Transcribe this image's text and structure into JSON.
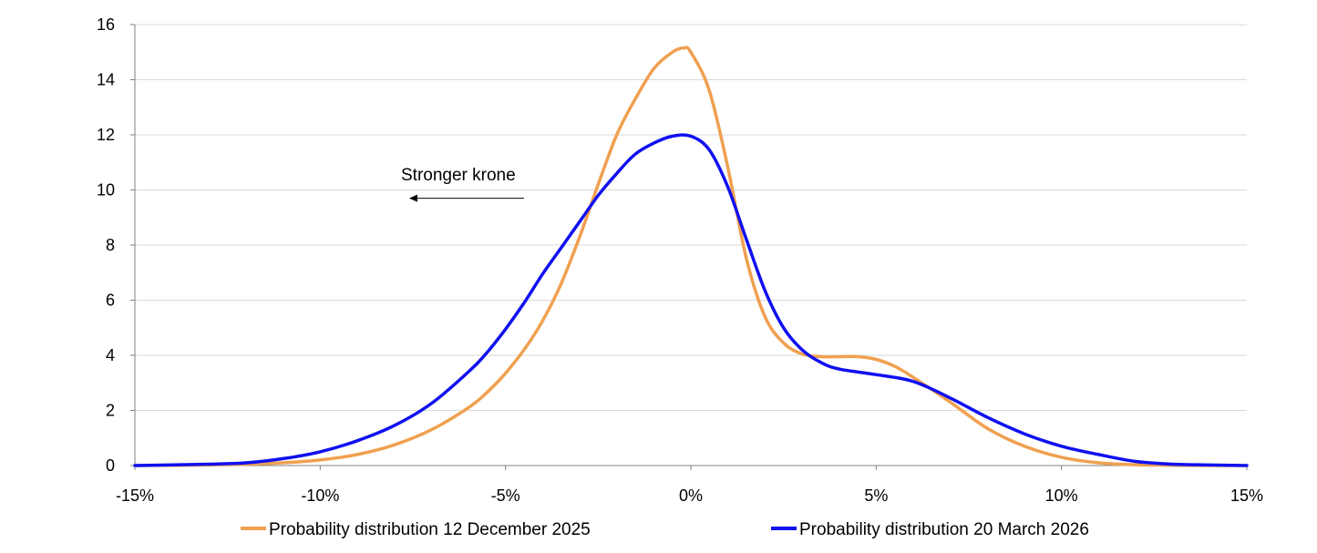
{
  "colors": {
    "series_1": "#F0A050",
    "series_2": "#1010F0",
    "grid": "#D9D9D9",
    "axis": "#808080",
    "text": "#000000"
  },
  "chart_data": {
    "type": "line",
    "title": "",
    "xlabel": "",
    "ylabel": "",
    "xlim": [
      -15,
      15
    ],
    "ylim": [
      0,
      16
    ],
    "x_ticks": [
      -15,
      -10,
      -5,
      0,
      5,
      10,
      15
    ],
    "x_tick_labels": [
      "-15%",
      "-10%",
      "-5%",
      "0%",
      "5%",
      "10%",
      "15%"
    ],
    "y_ticks": [
      0,
      2,
      4,
      6,
      8,
      10,
      12,
      14,
      16
    ],
    "y_tick_labels": [
      "0",
      "2",
      "4",
      "6",
      "8",
      "10",
      "12",
      "14",
      "16"
    ],
    "grid": "horizontal",
    "legend_position": "bottom",
    "annotation": {
      "text": "Stronger krone",
      "arrow_from": [
        -4.5,
        9.7
      ],
      "arrow_to": [
        -7.6,
        9.7
      ]
    },
    "series": [
      {
        "name": "Probability distribution 12 December 2025",
        "color": "#F0A050",
        "x": [
          -15,
          -13,
          -12,
          -11,
          -10,
          -9,
          -8,
          -7,
          -6,
          -5.5,
          -5,
          -4.5,
          -4,
          -3.5,
          -3,
          -2.5,
          -2,
          -1.5,
          -1,
          -0.5,
          -0.2,
          0,
          0.5,
          1,
          1.5,
          2,
          2.5,
          3,
          3.5,
          4,
          4.5,
          5,
          5.5,
          6,
          7,
          8,
          9,
          10,
          11,
          12,
          13,
          14,
          15
        ],
        "values": [
          0,
          0.02,
          0.05,
          0.1,
          0.2,
          0.4,
          0.75,
          1.3,
          2.1,
          2.65,
          3.35,
          4.2,
          5.25,
          6.6,
          8.3,
          10.2,
          12.0,
          13.3,
          14.4,
          15.0,
          15.15,
          15.0,
          13.6,
          10.8,
          7.5,
          5.4,
          4.45,
          4.05,
          3.95,
          3.95,
          3.95,
          3.85,
          3.6,
          3.2,
          2.3,
          1.35,
          0.7,
          0.3,
          0.1,
          0.03,
          0.01,
          0,
          0
        ]
      },
      {
        "name": "Probability distribution 20 March 2026",
        "color": "#1010F0",
        "x": [
          -15,
          -13,
          -12,
          -11,
          -10,
          -9,
          -8,
          -7,
          -6,
          -5.5,
          -5,
          -4.5,
          -4,
          -3.5,
          -3,
          -2.5,
          -2,
          -1.5,
          -1,
          -0.5,
          0,
          0.5,
          1,
          1.5,
          2,
          2.5,
          3,
          3.5,
          4,
          5,
          6,
          7,
          8,
          9,
          10,
          11,
          12,
          13,
          14,
          15
        ],
        "values": [
          0,
          0.05,
          0.1,
          0.25,
          0.5,
          0.9,
          1.45,
          2.25,
          3.4,
          4.1,
          4.95,
          5.9,
          6.95,
          7.9,
          8.85,
          9.8,
          10.6,
          11.3,
          11.7,
          11.95,
          11.95,
          11.45,
          10.1,
          8.2,
          6.35,
          5.0,
          4.2,
          3.75,
          3.5,
          3.3,
          3.05,
          2.45,
          1.75,
          1.15,
          0.7,
          0.4,
          0.15,
          0.05,
          0.02,
          0
        ]
      }
    ]
  }
}
